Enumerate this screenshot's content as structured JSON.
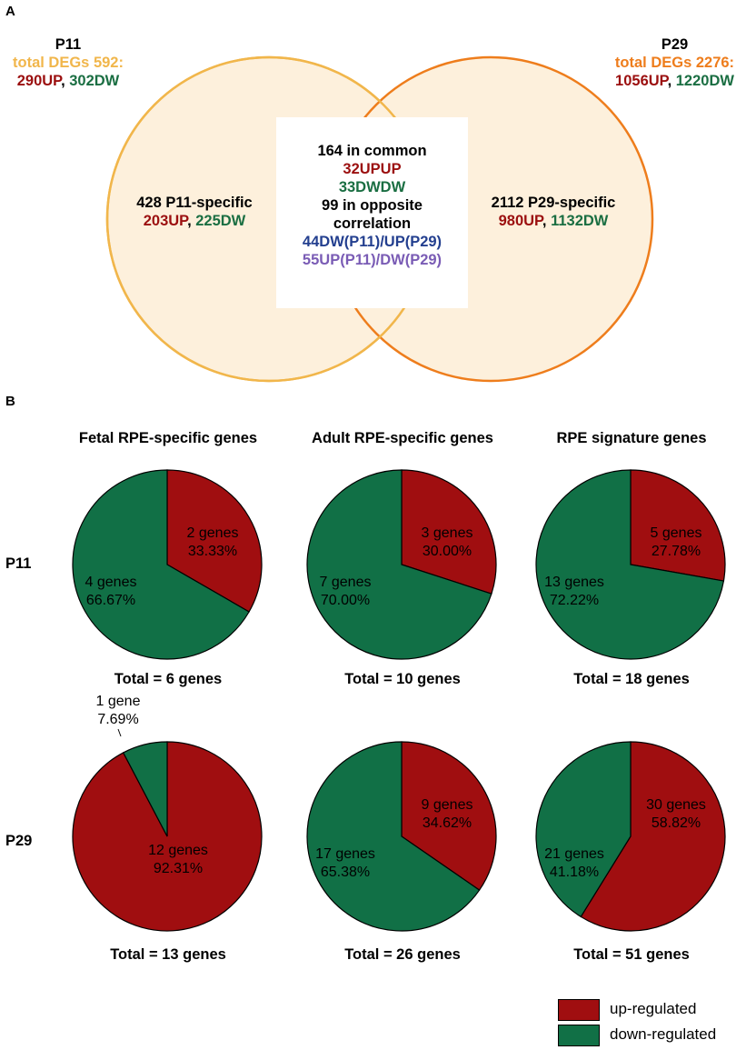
{
  "panel_a": {
    "letter": "A",
    "p11": {
      "title": "P11",
      "total": "total DEGs 592:",
      "up": "290UP",
      "sep": ", ",
      "dw": "302DW"
    },
    "p29": {
      "title": "P29",
      "total": "total DEGs 2276:",
      "up": "1056UP",
      "sep": ", ",
      "dw": "1220DW"
    },
    "p11_specific": {
      "label": "428 P11-specific",
      "up": "203UP",
      "sep": ", ",
      "dw": "225DW"
    },
    "p29_specific": {
      "label": "2112 P29-specific",
      "up": "980UP",
      "sep": ", ",
      "dw": "1132DW"
    },
    "common": {
      "line1": "164 in common",
      "upup": "32UPUP",
      "dwdw": "33DWDW",
      "line4": "99 in opposite",
      "line5": "correlation",
      "dw_up": "44DW(P11)/UP(P29)",
      "up_dw": "55UP(P11)/DW(P29)"
    },
    "colors": {
      "p11_circle": "#f1b64b",
      "p29_circle": "#ee7d1c",
      "fill": "#fdf0dc"
    }
  },
  "panel_b": {
    "letter": "B",
    "column_titles": [
      "Fetal RPE-specific genes",
      "Adult RPE-specific genes",
      "RPE signature genes"
    ],
    "row_labels": [
      "P11",
      "P29"
    ]
  },
  "legend": {
    "up_label": "up-regulated",
    "down_label": "down-regulated",
    "up_color": "#a00e10",
    "down_color": "#117046"
  },
  "chart_data": [
    {
      "type": "pie",
      "row": "P11",
      "column": "Fetal RPE-specific genes",
      "categories": [
        "up-regulated",
        "down-regulated"
      ],
      "values": [
        2,
        4
      ],
      "labels": [
        [
          "2 genes",
          "33.33%"
        ],
        [
          "4 genes",
          "66.67%"
        ]
      ],
      "total": "Total = 6 genes"
    },
    {
      "type": "pie",
      "row": "P11",
      "column": "Adult RPE-specific genes",
      "categories": [
        "up-regulated",
        "down-regulated"
      ],
      "values": [
        3,
        7
      ],
      "labels": [
        [
          "3 genes",
          "30.00%"
        ],
        [
          "7 genes",
          "70.00%"
        ]
      ],
      "total": "Total = 10 genes"
    },
    {
      "type": "pie",
      "row": "P11",
      "column": "RPE signature genes",
      "categories": [
        "up-regulated",
        "down-regulated"
      ],
      "values": [
        5,
        13
      ],
      "labels": [
        [
          "5 genes",
          "27.78%"
        ],
        [
          "13 genes",
          "72.22%"
        ]
      ],
      "total": "Total = 18 genes"
    },
    {
      "type": "pie",
      "row": "P29",
      "column": "Fetal RPE-specific genes",
      "categories": [
        "up-regulated",
        "down-regulated"
      ],
      "values": [
        12,
        1
      ],
      "labels": [
        [
          "12 genes",
          "92.31%"
        ],
        [
          "1 gene",
          "7.69%"
        ]
      ],
      "total": "Total = 13 genes"
    },
    {
      "type": "pie",
      "row": "P29",
      "column": "Adult RPE-specific genes",
      "categories": [
        "up-regulated",
        "down-regulated"
      ],
      "values": [
        9,
        17
      ],
      "labels": [
        [
          "9 genes",
          "34.62%"
        ],
        [
          "17 genes",
          "65.38%"
        ]
      ],
      "total": "Total = 26 genes"
    },
    {
      "type": "pie",
      "row": "P29",
      "column": "RPE signature genes",
      "categories": [
        "up-regulated",
        "down-regulated"
      ],
      "values": [
        30,
        21
      ],
      "labels": [
        [
          "30 genes",
          "58.82%"
        ],
        [
          "21 genes",
          "41.18%"
        ]
      ],
      "total": "Total = 51 genes"
    }
  ]
}
